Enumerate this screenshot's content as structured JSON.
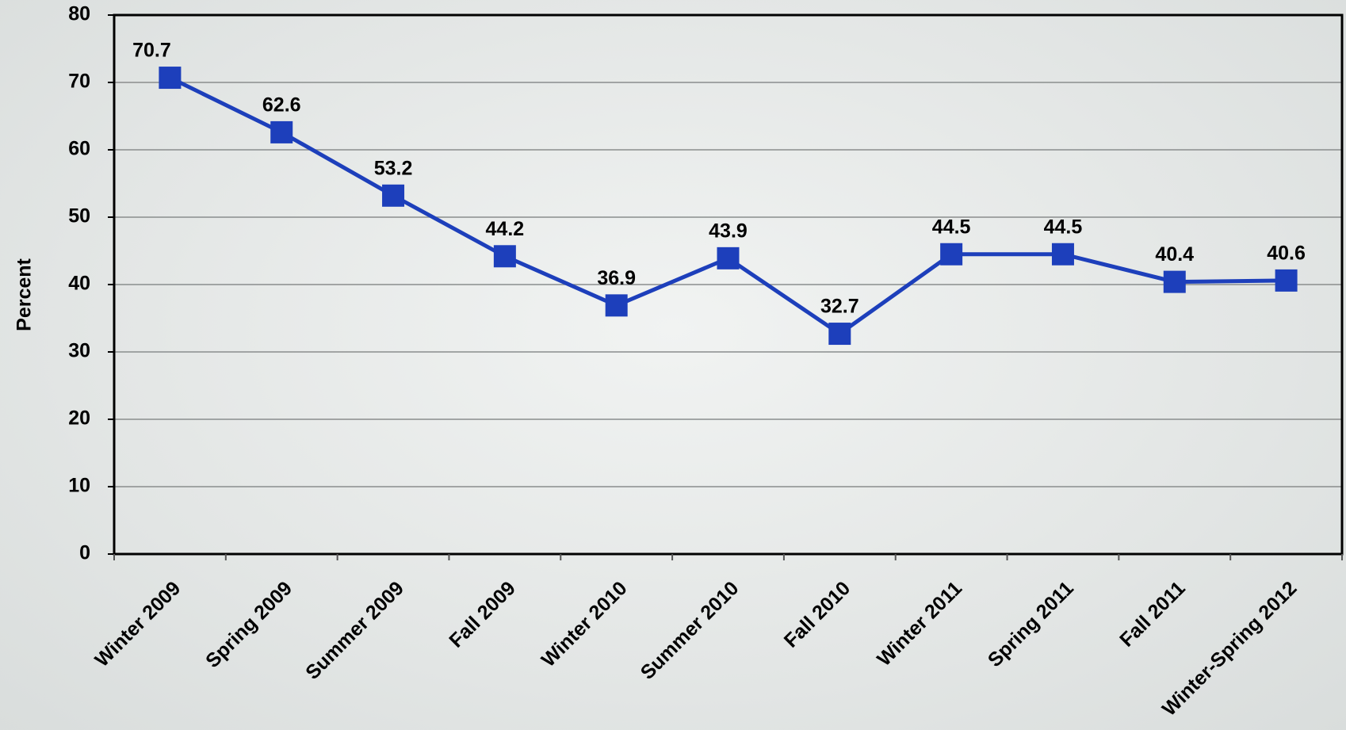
{
  "chart_data": {
    "type": "line",
    "y_label": "Percent",
    "categories": [
      "Winter 2009",
      "Spring 2009",
      "Summer 2009",
      "Fall 2009",
      "Winter 2010",
      "Summer 2010",
      "Fall 2010",
      "Winter 2011",
      "Spring 2011",
      "Fall 2011",
      "Winter-Spring 2012"
    ],
    "values": [
      70.7,
      62.6,
      53.2,
      44.2,
      36.9,
      43.9,
      32.7,
      44.5,
      44.5,
      40.4,
      40.6
    ],
    "color": "#1d3fbb",
    "ylim": [
      0,
      80
    ],
    "yticks": [
      0,
      10,
      20,
      30,
      40,
      50,
      60,
      70,
      80
    ],
    "grid": true
  }
}
